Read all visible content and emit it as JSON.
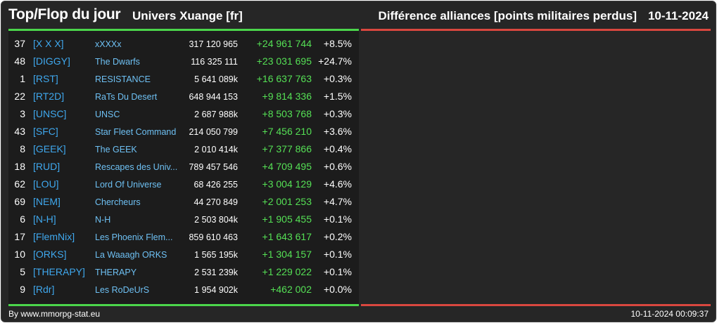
{
  "header": {
    "title": "Top/Flop du jour",
    "universe": "Univers Xuange [fr]",
    "subtitle": "Différence alliances [points militaires perdus]",
    "date": "10-11-2024"
  },
  "colors": {
    "background": "#262626",
    "panel": "#1c1c1c",
    "top_accent": "#4bd64b",
    "flop_accent": "#d9473f",
    "tag": "#3fa8ee",
    "name": "#6ec0f3",
    "positive_diff": "#55e055"
  },
  "top_rows": [
    {
      "rank": "37",
      "tag": "[X X X]",
      "name": "xXXXx",
      "points": "317 120 965",
      "diff": "+24 961 744",
      "pct": "+8.5%"
    },
    {
      "rank": "48",
      "tag": "[DIGGY]",
      "name": "The Dwarfs",
      "points": "116 325 111",
      "diff": "+23 031 695",
      "pct": "+24.7%"
    },
    {
      "rank": "1",
      "tag": "[RST]",
      "name": "RESISTANCE",
      "points": "5 641 089k",
      "diff": "+16 637 763",
      "pct": "+0.3%"
    },
    {
      "rank": "22",
      "tag": "[RT2D]",
      "name": "RaTs Du Desert",
      "points": "648 944 153",
      "diff": "+9 814 336",
      "pct": "+1.5%"
    },
    {
      "rank": "3",
      "tag": "[UNSC]",
      "name": "UNSC",
      "points": "2 687 988k",
      "diff": "+8 503 768",
      "pct": "+0.3%"
    },
    {
      "rank": "43",
      "tag": "[SFC]",
      "name": "Star Fleet Command",
      "points": "214 050 799",
      "diff": "+7 456 210",
      "pct": "+3.6%"
    },
    {
      "rank": "8",
      "tag": "[GEEK]",
      "name": "The GEEK",
      "points": "2 010 414k",
      "diff": "+7 377 866",
      "pct": "+0.4%"
    },
    {
      "rank": "18",
      "tag": "[RUD]",
      "name": "Rescapes des Univ...",
      "points": "789 457 546",
      "diff": "+4 709 495",
      "pct": "+0.6%"
    },
    {
      "rank": "62",
      "tag": "[LOU]",
      "name": "Lord Of Universe",
      "points": "68 426 255",
      "diff": "+3 004 129",
      "pct": "+4.6%"
    },
    {
      "rank": "69",
      "tag": "[NEM]",
      "name": "Chercheurs",
      "points": "44 270 849",
      "diff": "+2 001 253",
      "pct": "+4.7%"
    },
    {
      "rank": "6",
      "tag": "[N-H]",
      "name": "N-H",
      "points": "2 503 804k",
      "diff": "+1 905 455",
      "pct": "+0.1%"
    },
    {
      "rank": "17",
      "tag": "[FlemNix]",
      "name": "Les Phoenix Flem...",
      "points": "859 610 463",
      "diff": "+1 643 617",
      "pct": "+0.2%"
    },
    {
      "rank": "10",
      "tag": "[ORKS]",
      "name": "La Waaagh ORKS",
      "points": "1 565 195k",
      "diff": "+1 304 157",
      "pct": "+0.1%"
    },
    {
      "rank": "5",
      "tag": "[THERAPY]",
      "name": "THERAPY",
      "points": "2 531 239k",
      "diff": "+1 229 022",
      "pct": "+0.1%"
    },
    {
      "rank": "9",
      "tag": "[Rdr]",
      "name": "Les RoDeUrS",
      "points": "1 954 902k",
      "diff": "+462 002",
      "pct": "+0.0%"
    }
  ],
  "flop_rows": [],
  "footer": {
    "credit": "By www.mmorpg-stat.eu",
    "timestamp": "10-11-2024 00:09:37"
  }
}
